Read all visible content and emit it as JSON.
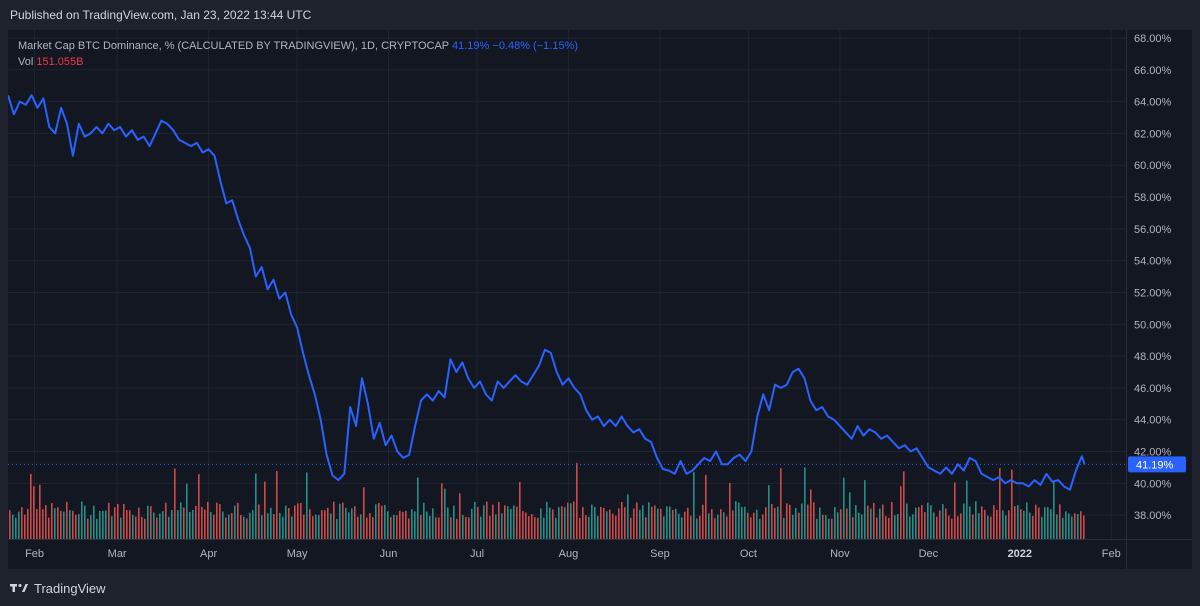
{
  "header": {
    "published": "Published on TradingView.com, Jan 23, 2022 13:44 UTC"
  },
  "legend": {
    "series_title": "Market Cap BTC Dominance, % (CALCULATED BY TRADINGVIEW), 1D, CRYPTOCAP",
    "last_value": "41.19%",
    "change": "−0.48% (−1.15%)",
    "vol_label": "Vol",
    "vol_value": "151.055B"
  },
  "footer": {
    "brand": "TradingView"
  },
  "colors": {
    "line": "#2962ff",
    "vol_up": "#26a69a",
    "vol_down": "#ef5350",
    "bg": "#131722"
  },
  "chart_data": {
    "type": "line",
    "y_axis_side": "right",
    "y_unit": "%",
    "ylim": [
      36.5,
      68.5
    ],
    "y_ticks": [
      38,
      40,
      42,
      44,
      46,
      48,
      50,
      52,
      54,
      56,
      58,
      60,
      62,
      64,
      66,
      68
    ],
    "y_tick_labels": [
      "38.00%",
      "40.00%",
      "42.00%",
      "44.00%",
      "46.00%",
      "48.00%",
      "50.00%",
      "52.00%",
      "54.00%",
      "56.00%",
      "58.00%",
      "60.00%",
      "62.00%",
      "64.00%",
      "66.00%",
      "68.00%"
    ],
    "last_value_label": "41.19%",
    "last_value": 41.19,
    "x_range": [
      "2021-01-23",
      "2022-02-06"
    ],
    "x_ticks": [
      {
        "date": "2021-02-01",
        "label": "Feb"
      },
      {
        "date": "2021-03-01",
        "label": "Mar"
      },
      {
        "date": "2021-04-01",
        "label": "Apr"
      },
      {
        "date": "2021-05-01",
        "label": "May"
      },
      {
        "date": "2021-06-01",
        "label": "Jun"
      },
      {
        "date": "2021-07-01",
        "label": "Jul"
      },
      {
        "date": "2021-08-01",
        "label": "Aug"
      },
      {
        "date": "2021-09-01",
        "label": "Sep"
      },
      {
        "date": "2021-10-01",
        "label": "Oct"
      },
      {
        "date": "2021-11-01",
        "label": "Nov"
      },
      {
        "date": "2021-12-01",
        "label": "Dec"
      },
      {
        "date": "2022-01-01",
        "label": "2022",
        "bold": true
      },
      {
        "date": "2022-02-01",
        "label": "Feb"
      }
    ],
    "series": [
      {
        "name": "Market Cap BTC Dominance",
        "points": [
          [
            "2021-01-23",
            64.4
          ],
          [
            "2021-01-25",
            63.2
          ],
          [
            "2021-01-27",
            64.0
          ],
          [
            "2021-01-29",
            63.8
          ],
          [
            "2021-01-31",
            64.4
          ],
          [
            "2021-02-02",
            63.6
          ],
          [
            "2021-02-04",
            64.2
          ],
          [
            "2021-02-06",
            62.4
          ],
          [
            "2021-02-08",
            62.0
          ],
          [
            "2021-02-10",
            63.6
          ],
          [
            "2021-02-12",
            62.6
          ],
          [
            "2021-02-14",
            60.6
          ],
          [
            "2021-02-16",
            62.6
          ],
          [
            "2021-02-18",
            61.8
          ],
          [
            "2021-02-20",
            62.0
          ],
          [
            "2021-02-22",
            62.4
          ],
          [
            "2021-02-24",
            62.0
          ],
          [
            "2021-02-26",
            62.6
          ],
          [
            "2021-02-28",
            62.2
          ],
          [
            "2021-03-02",
            62.4
          ],
          [
            "2021-03-04",
            61.8
          ],
          [
            "2021-03-06",
            62.2
          ],
          [
            "2021-03-08",
            61.6
          ],
          [
            "2021-03-10",
            61.8
          ],
          [
            "2021-03-12",
            61.2
          ],
          [
            "2021-03-14",
            62.0
          ],
          [
            "2021-03-16",
            62.8
          ],
          [
            "2021-03-18",
            62.6
          ],
          [
            "2021-03-20",
            62.2
          ],
          [
            "2021-03-22",
            61.6
          ],
          [
            "2021-03-24",
            61.4
          ],
          [
            "2021-03-26",
            61.2
          ],
          [
            "2021-03-28",
            61.4
          ],
          [
            "2021-03-30",
            60.8
          ],
          [
            "2021-04-01",
            61.0
          ],
          [
            "2021-04-03",
            60.6
          ],
          [
            "2021-04-05",
            59.0
          ],
          [
            "2021-04-07",
            57.6
          ],
          [
            "2021-04-09",
            57.8
          ],
          [
            "2021-04-11",
            56.6
          ],
          [
            "2021-04-13",
            55.6
          ],
          [
            "2021-04-15",
            54.8
          ],
          [
            "2021-04-17",
            53.0
          ],
          [
            "2021-04-19",
            53.6
          ],
          [
            "2021-04-21",
            52.2
          ],
          [
            "2021-04-23",
            52.8
          ],
          [
            "2021-04-25",
            51.6
          ],
          [
            "2021-04-27",
            52.0
          ],
          [
            "2021-04-29",
            50.6
          ],
          [
            "2021-05-01",
            49.8
          ],
          [
            "2021-05-03",
            48.2
          ],
          [
            "2021-05-05",
            46.8
          ],
          [
            "2021-05-07",
            45.6
          ],
          [
            "2021-05-09",
            44.0
          ],
          [
            "2021-05-11",
            41.8
          ],
          [
            "2021-05-13",
            40.5
          ],
          [
            "2021-05-15",
            40.2
          ],
          [
            "2021-05-17",
            40.6
          ],
          [
            "2021-05-19",
            44.8
          ],
          [
            "2021-05-21",
            43.6
          ],
          [
            "2021-05-23",
            46.6
          ],
          [
            "2021-05-25",
            45.0
          ],
          [
            "2021-05-27",
            42.8
          ],
          [
            "2021-05-29",
            43.8
          ],
          [
            "2021-05-31",
            42.4
          ],
          [
            "2021-06-02",
            43.0
          ],
          [
            "2021-06-04",
            42.0
          ],
          [
            "2021-06-06",
            41.6
          ],
          [
            "2021-06-08",
            41.8
          ],
          [
            "2021-06-10",
            43.6
          ],
          [
            "2021-06-12",
            45.2
          ],
          [
            "2021-06-14",
            45.6
          ],
          [
            "2021-06-16",
            45.2
          ],
          [
            "2021-06-18",
            45.8
          ],
          [
            "2021-06-20",
            45.4
          ],
          [
            "2021-06-22",
            47.8
          ],
          [
            "2021-06-24",
            47.0
          ],
          [
            "2021-06-26",
            47.6
          ],
          [
            "2021-06-28",
            46.6
          ],
          [
            "2021-06-30",
            46.0
          ],
          [
            "2021-07-02",
            46.4
          ],
          [
            "2021-07-04",
            45.6
          ],
          [
            "2021-07-06",
            45.2
          ],
          [
            "2021-07-08",
            46.4
          ],
          [
            "2021-07-10",
            46.0
          ],
          [
            "2021-07-12",
            46.4
          ],
          [
            "2021-07-14",
            46.8
          ],
          [
            "2021-07-16",
            46.4
          ],
          [
            "2021-07-18",
            46.2
          ],
          [
            "2021-07-20",
            46.8
          ],
          [
            "2021-07-22",
            47.4
          ],
          [
            "2021-07-24",
            48.4
          ],
          [
            "2021-07-26",
            48.2
          ],
          [
            "2021-07-28",
            47.0
          ],
          [
            "2021-07-30",
            46.2
          ],
          [
            "2021-08-01",
            46.6
          ],
          [
            "2021-08-03",
            46.0
          ],
          [
            "2021-08-05",
            45.6
          ],
          [
            "2021-08-07",
            44.6
          ],
          [
            "2021-08-09",
            44.0
          ],
          [
            "2021-08-11",
            44.2
          ],
          [
            "2021-08-13",
            43.6
          ],
          [
            "2021-08-15",
            44.0
          ],
          [
            "2021-08-17",
            43.6
          ],
          [
            "2021-08-19",
            44.2
          ],
          [
            "2021-08-21",
            43.6
          ],
          [
            "2021-08-23",
            43.2
          ],
          [
            "2021-08-25",
            43.4
          ],
          [
            "2021-08-27",
            42.8
          ],
          [
            "2021-08-29",
            42.6
          ],
          [
            "2021-08-31",
            41.6
          ],
          [
            "2021-09-02",
            40.9
          ],
          [
            "2021-09-04",
            40.8
          ],
          [
            "2021-09-06",
            40.6
          ],
          [
            "2021-09-08",
            41.4
          ],
          [
            "2021-09-10",
            40.6
          ],
          [
            "2021-09-12",
            40.8
          ],
          [
            "2021-09-14",
            41.2
          ],
          [
            "2021-09-16",
            41.6
          ],
          [
            "2021-09-18",
            41.4
          ],
          [
            "2021-09-20",
            42.0
          ],
          [
            "2021-09-22",
            41.2
          ],
          [
            "2021-09-24",
            41.2
          ],
          [
            "2021-09-26",
            41.6
          ],
          [
            "2021-09-28",
            41.8
          ],
          [
            "2021-09-30",
            41.4
          ],
          [
            "2021-10-02",
            42.0
          ],
          [
            "2021-10-04",
            44.2
          ],
          [
            "2021-10-06",
            45.6
          ],
          [
            "2021-10-08",
            44.6
          ],
          [
            "2021-10-10",
            46.2
          ],
          [
            "2021-10-12",
            46.0
          ],
          [
            "2021-10-14",
            46.2
          ],
          [
            "2021-10-16",
            47.0
          ],
          [
            "2021-10-18",
            47.2
          ],
          [
            "2021-10-20",
            46.6
          ],
          [
            "2021-10-22",
            45.2
          ],
          [
            "2021-10-24",
            44.6
          ],
          [
            "2021-10-26",
            44.8
          ],
          [
            "2021-10-28",
            44.2
          ],
          [
            "2021-10-30",
            44.0
          ],
          [
            "2021-11-01",
            43.6
          ],
          [
            "2021-11-03",
            43.2
          ],
          [
            "2021-11-05",
            42.8
          ],
          [
            "2021-11-07",
            43.6
          ],
          [
            "2021-11-09",
            43.0
          ],
          [
            "2021-11-11",
            43.4
          ],
          [
            "2021-11-13",
            43.2
          ],
          [
            "2021-11-15",
            42.8
          ],
          [
            "2021-11-17",
            43.0
          ],
          [
            "2021-11-19",
            42.6
          ],
          [
            "2021-11-21",
            42.2
          ],
          [
            "2021-11-23",
            42.4
          ],
          [
            "2021-11-25",
            42.0
          ],
          [
            "2021-11-27",
            42.2
          ],
          [
            "2021-11-29",
            41.6
          ],
          [
            "2021-12-01",
            41.0
          ],
          [
            "2021-12-03",
            40.8
          ],
          [
            "2021-12-05",
            40.6
          ],
          [
            "2021-12-07",
            41.0
          ],
          [
            "2021-12-09",
            40.6
          ],
          [
            "2021-12-11",
            41.2
          ],
          [
            "2021-12-13",
            40.8
          ],
          [
            "2021-12-15",
            41.6
          ],
          [
            "2021-12-17",
            41.4
          ],
          [
            "2021-12-19",
            40.6
          ],
          [
            "2021-12-21",
            40.4
          ],
          [
            "2021-12-23",
            40.2
          ],
          [
            "2021-12-25",
            40.4
          ],
          [
            "2021-12-27",
            40.0
          ],
          [
            "2021-12-29",
            40.2
          ],
          [
            "2021-12-31",
            40.0
          ],
          [
            "2022-01-02",
            40.0
          ],
          [
            "2022-01-04",
            39.8
          ],
          [
            "2022-01-06",
            40.2
          ],
          [
            "2022-01-08",
            39.9
          ],
          [
            "2022-01-10",
            40.6
          ],
          [
            "2022-01-12",
            40.1
          ],
          [
            "2022-01-14",
            40.2
          ],
          [
            "2022-01-16",
            39.8
          ],
          [
            "2022-01-18",
            39.6
          ],
          [
            "2022-01-20",
            40.8
          ],
          [
            "2022-01-22",
            41.7
          ],
          [
            "2022-01-23",
            41.19
          ]
        ]
      }
    ],
    "volume_note": "Vol histogram (green/red bars) at the bottom of the pane"
  }
}
